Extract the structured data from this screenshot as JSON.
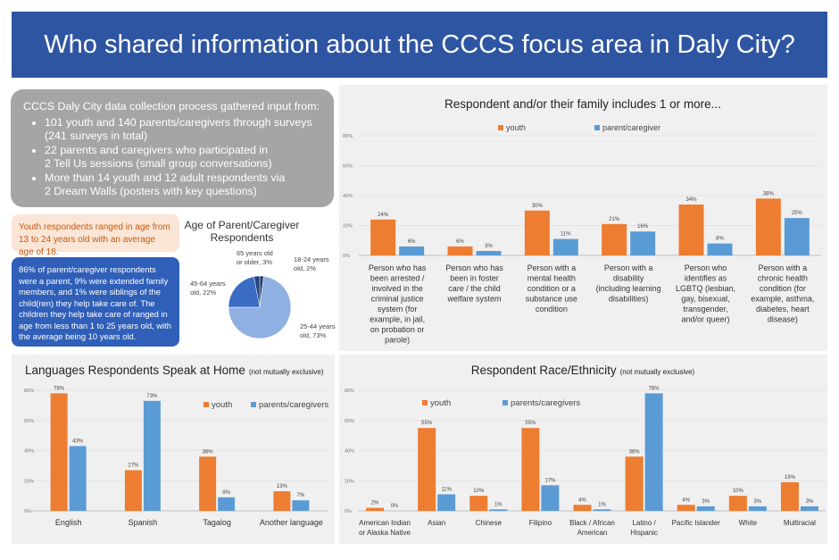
{
  "header": {
    "title": "Who shared information about the CCCS focus area in Daly City?"
  },
  "info": {
    "intro": "CCCS Daly City data collection process gathered input from:",
    "bullets": [
      {
        "line1": "101 youth and 140 parents/caregivers through surveys",
        "line2": "(241 surveys in total)"
      },
      {
        "line1": "22 parents and caregivers who participated in",
        "line2": "2 Tell Us sessions (small group conversations)"
      },
      {
        "line1": "More than 14 youth and 12 adult respondents via",
        "line2": "2 Dream Walls (posters with key questions)"
      }
    ],
    "youth_age": "Youth respondents ranged in age from 13 to 24 years old with an average age of 18.",
    "parent_relationship": "86% of parent/caregiver respondents were a parent, 9% were extended family members, and 1% were siblings of the child(ren) they help take care of. The children they help take care of ranged in age from less than 1 to 25 years old, with the average being 10 years old."
  },
  "colors": {
    "youth": "#ed7d31",
    "parent": "#5b9bd5",
    "header": "#2e55a2"
  },
  "chart_data": [
    {
      "id": "age",
      "type": "pie",
      "title": "Age of Parent/Caregiver Respondents",
      "title_lines": [
        "Age of Parent/Caregiver",
        "Respondents"
      ],
      "slices": [
        {
          "label": "18-24 years old",
          "value": 2,
          "color": "#1f3a68",
          "label_lines": [
            "18-24 years",
            "old, 2%"
          ]
        },
        {
          "label": "25-44 years old",
          "value": 73,
          "color": "#8fb0e2",
          "label_lines": [
            "25-44 years",
            "old, 73%"
          ]
        },
        {
          "label": "45-64 years old",
          "value": 22,
          "color": "#3a6cc5",
          "label_lines": [
            "45-64 years",
            "old, 22%"
          ]
        },
        {
          "label": "65 years old or older",
          "value": 3,
          "color": "#23467f",
          "label_lines": [
            "65 years old",
            "or older, 3%"
          ]
        }
      ]
    },
    {
      "id": "family",
      "type": "bar",
      "title": "Respondent and/or their family includes 1 or more...",
      "ylim": [
        0,
        80
      ],
      "yticks": [
        "0%",
        "20%",
        "40%",
        "60%",
        "80%"
      ],
      "categories": [
        [
          "Person who has",
          "been arrested /",
          "involved in the",
          "criminal justice",
          "system (for",
          "example, in jail,",
          "on probation or",
          "parole)"
        ],
        [
          "Person who has",
          "been in foster",
          "care / the child",
          "welfare system"
        ],
        [
          "Person with a",
          "mental health",
          "condition or a",
          "substance use",
          "condition"
        ],
        [
          "Person with a",
          "disability",
          "(including learning",
          "disabilities)"
        ],
        [
          "Person who",
          "identifies as",
          "LGBTQ (lesbian,",
          "gay, bisexual,",
          "transgender,",
          "and/or queer)"
        ],
        [
          "Person with a",
          "chronic health",
          "condition (for",
          "example, asthma,",
          "diabetes, heart",
          "disease)"
        ]
      ],
      "series": [
        {
          "name": "youth",
          "values": [
            24,
            6,
            30,
            21,
            34,
            38
          ],
          "labels": [
            "24%",
            "6%",
            "30%",
            "21%",
            "34%",
            "38%"
          ]
        },
        {
          "name": "parent/caregiver",
          "values": [
            6,
            3,
            11,
            16,
            8,
            25
          ],
          "labels": [
            "6%",
            "3%",
            "11%",
            "16%",
            "8%",
            "25%"
          ]
        }
      ]
    },
    {
      "id": "lang",
      "type": "bar",
      "title": "Languages Respondents Speak at Home",
      "subtitle": "(not mutually exclusive)",
      "ylim": [
        0,
        80
      ],
      "yticks": [
        "0%",
        "20%",
        "40%",
        "60%",
        "80%"
      ],
      "categories": [
        [
          "English"
        ],
        [
          "Spanish"
        ],
        [
          "Tagalog"
        ],
        [
          "Another language"
        ]
      ],
      "series": [
        {
          "name": "youth",
          "values": [
            78,
            27,
            36,
            13
          ],
          "labels": [
            "78%",
            "27%",
            "36%",
            "13%"
          ]
        },
        {
          "name": "parents/caregivers",
          "values": [
            43,
            73,
            9,
            7
          ],
          "labels": [
            "43%",
            "73%",
            "9%",
            "7%"
          ]
        }
      ]
    },
    {
      "id": "race",
      "type": "bar",
      "title": "Respondent Race/Ethnicity",
      "subtitle": "(not mutually exclusive)",
      "ylim": [
        0,
        80
      ],
      "yticks": [
        "0%",
        "20%",
        "40%",
        "60%",
        "80%"
      ],
      "categories": [
        [
          "American Indian",
          "or Alaska Native"
        ],
        [
          "Asian"
        ],
        [
          "Chinese"
        ],
        [
          "Filipino"
        ],
        [
          "Black / African",
          "American"
        ],
        [
          "Latino /",
          "Hispanic"
        ],
        [
          "Pacific Islander"
        ],
        [
          "White"
        ],
        [
          "Multiracial"
        ]
      ],
      "series": [
        {
          "name": "youth",
          "values": [
            2,
            55,
            10,
            55,
            4,
            36,
            4,
            10,
            19
          ],
          "labels": [
            "2%",
            "55%",
            "10%",
            "55%",
            "4%",
            "36%",
            "4%",
            "10%",
            "19%"
          ]
        },
        {
          "name": "parents/caregivers",
          "values": [
            0,
            11,
            1,
            17,
            1,
            78,
            3,
            3,
            3
          ],
          "labels": [
            "0%",
            "11%",
            "1%",
            "17%",
            "1%",
            "78%",
            "3%",
            "3%",
            "3%"
          ]
        }
      ]
    }
  ]
}
